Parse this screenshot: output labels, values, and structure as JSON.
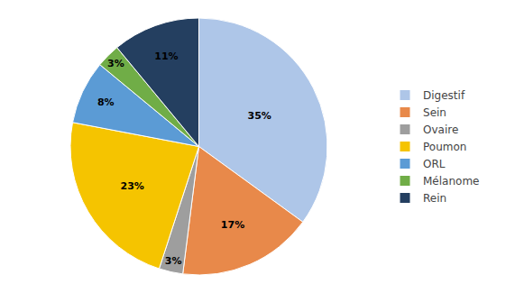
{
  "chart_data": {
    "type": "pie",
    "categories": [
      "Digestif",
      "Sein",
      "Ovaire",
      "Poumon",
      "ORL",
      "Mélanome",
      "Rein"
    ],
    "values": [
      35,
      17,
      3,
      23,
      8,
      3,
      11
    ],
    "value_labels": [
      "35%",
      "17%",
      "3%",
      "23%",
      "8%",
      "3%",
      "11%"
    ],
    "colors": [
      "#aec6e8",
      "#e8894a",
      "#9e9e9e",
      "#f5c400",
      "#5b9bd5",
      "#70ad47",
      "#243f60"
    ],
    "data_labels": true,
    "legend": "right"
  }
}
